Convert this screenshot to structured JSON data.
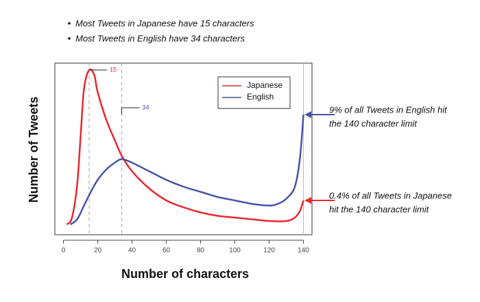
{
  "chart_data": {
    "type": "line",
    "notes": [
      "Most Tweets in Japanese have 15 characters",
      "Most Tweets in English have 34 characters"
    ],
    "x_label": "Number of characters",
    "y_label": "Number of Tweets",
    "xlim": [
      -5,
      145
    ],
    "ylim": [
      0,
      100
    ],
    "xticks": [
      0,
      20,
      40,
      60,
      80,
      100,
      120,
      140
    ],
    "legend": "top-right",
    "series": [
      {
        "name": "Japanese",
        "color": "#e8282e",
        "x": [
          2,
          5,
          8,
          10,
          12,
          15,
          18,
          20,
          25,
          30,
          34,
          40,
          50,
          60,
          70,
          80,
          90,
          100,
          110,
          120,
          130,
          135,
          138,
          140
        ],
        "values": [
          6,
          10,
          29,
          57,
          85,
          96,
          93,
          83,
          67,
          55,
          46,
          37,
          27,
          20,
          16,
          13,
          11,
          10,
          9,
          8,
          8,
          10,
          14,
          20
        ]
      },
      {
        "name": "English",
        "color": "#4654a6",
        "x": [
          4,
          8,
          12,
          16,
          20,
          25,
          30,
          34,
          40,
          50,
          60,
          70,
          80,
          90,
          100,
          110,
          120,
          125,
          130,
          135,
          138,
          140
        ],
        "values": [
          6,
          9,
          17,
          25,
          32,
          38,
          42,
          44,
          42,
          37,
          32,
          28,
          25,
          22,
          20,
          18,
          17,
          18,
          21,
          28,
          45,
          70
        ]
      }
    ],
    "peak_markers": [
      {
        "value": 15,
        "color": "#e8282e",
        "series": 0
      },
      {
        "value": 34,
        "color": "#4654a6",
        "series": 1
      }
    ],
    "limit_line": 140,
    "callouts": [
      {
        "lines": [
          "9% of all Tweets in English hit",
          "the 140 character limit"
        ],
        "color": "#4654a6",
        "series": 1
      },
      {
        "lines": [
          "0.4% of all Tweets in Japanese",
          "hit the 140 character limit"
        ],
        "color": "#e8282e",
        "series": 0
      }
    ]
  }
}
